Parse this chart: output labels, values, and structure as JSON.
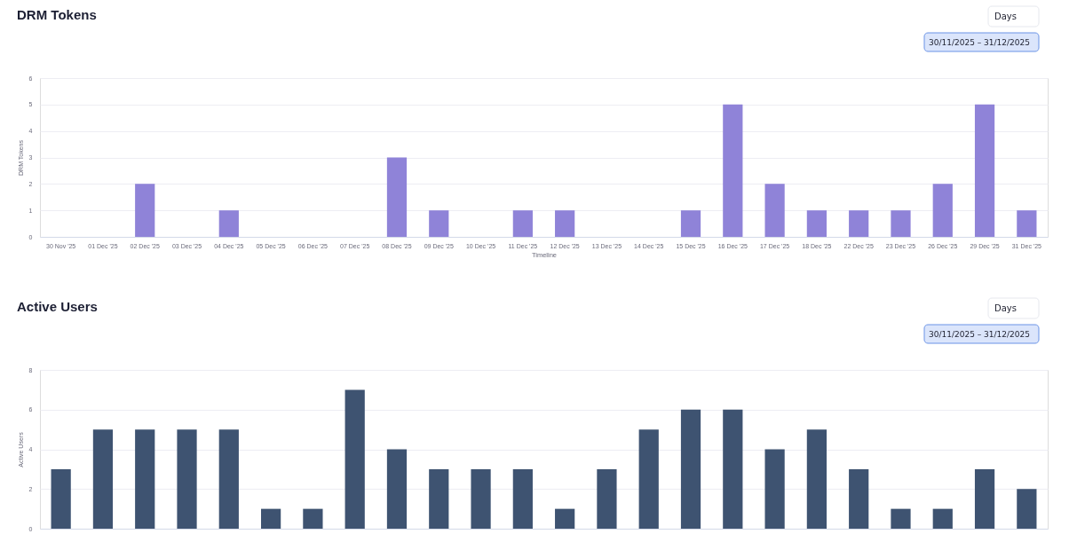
{
  "chart_data": [
    {
      "type": "bar",
      "title": "DRM Tokens",
      "xlabel": "Timeline",
      "ylabel": "DRM Tokens",
      "categories": [
        "30 Nov '25",
        "01 Dec '25",
        "02 Dec '25",
        "03 Dec '25",
        "04 Dec '25",
        "05 Dec '25",
        "06 Dec '25",
        "07 Dec '25",
        "08 Dec '25",
        "09 Dec '25",
        "10 Dec '25",
        "11 Dec '25",
        "12 Dec '25",
        "13 Dec '25",
        "14 Dec '25",
        "15 Dec '25",
        "16 Dec '25",
        "17 Dec '25",
        "18 Dec '25",
        "22 Dec '25",
        "23 Dec '25",
        "26 Dec '25",
        "29 Dec '25",
        "31 Dec '25"
      ],
      "series": [
        {
          "color": "#8f83d8",
          "values": [
            0,
            0,
            2,
            0,
            1,
            0,
            0,
            0,
            3,
            1,
            0,
            1,
            1,
            0,
            0,
            1,
            5,
            2,
            1,
            1,
            1,
            2,
            5,
            1
          ]
        }
      ],
      "ylim": [
        0,
        6
      ],
      "yticks": [
        0,
        1,
        2,
        3,
        4,
        5,
        6
      ],
      "grid": "y",
      "annotations": [
        "Days",
        "30/11/2025 – 31/12/2025"
      ]
    },
    {
      "type": "bar",
      "title": "Active Users",
      "ylabel": "Active Users",
      "categories": [
        null,
        null,
        null,
        null,
        null,
        null,
        null,
        null,
        null,
        null,
        null,
        null,
        null,
        null,
        null,
        null,
        null,
        null,
        null,
        null,
        null,
        null,
        null,
        null
      ],
      "series": [
        {
          "color": "#3e5371",
          "values": [
            3,
            5,
            5,
            5,
            5,
            1,
            1,
            7,
            4,
            3,
            3,
            3,
            1,
            3,
            5,
            6,
            6,
            4,
            5,
            3,
            1,
            1,
            3,
            2
          ]
        }
      ],
      "ylim": [
        0,
        8
      ],
      "yticks": [
        0,
        2,
        4,
        6,
        8
      ],
      "grid": "y",
      "tick_labels": "y",
      "annotations": [
        "Days",
        "30/11/2025 – 31/12/2025"
      ]
    }
  ]
}
